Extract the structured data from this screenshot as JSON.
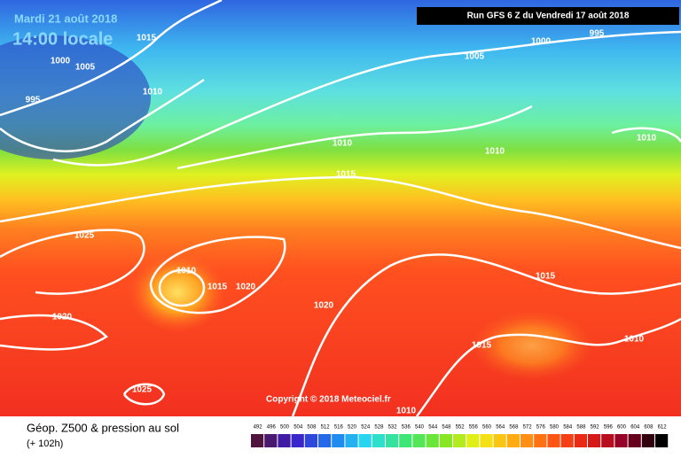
{
  "header": {
    "date": "Mardi 21 août 2018",
    "time": "14:00 locale",
    "run": "Run GFS 6 Z du Vendredi 17 août 2018"
  },
  "isobar_labels": [
    "1015",
    "1000",
    "1005",
    "1010",
    "995",
    "1005",
    "1000",
    "995",
    "1010",
    "1010",
    "1010",
    "1015",
    "1025",
    "1010",
    "1015",
    "1020",
    "1020",
    "1020",
    "1015",
    "1015",
    "1010",
    "1025",
    "1010"
  ],
  "copyright": "Copyright © 2018 Meteociel.fr",
  "legend": {
    "title": "Géop. Z500 & pression au sol",
    "subtitle": "(+ 102h)",
    "values": [
      "492",
      "496",
      "500",
      "504",
      "508",
      "512",
      "516",
      "520",
      "524",
      "528",
      "532",
      "536",
      "540",
      "544",
      "548",
      "552",
      "556",
      "560",
      "564",
      "568",
      "572",
      "576",
      "580",
      "584",
      "588",
      "592",
      "596",
      "600",
      "604",
      "608",
      "612"
    ]
  }
}
